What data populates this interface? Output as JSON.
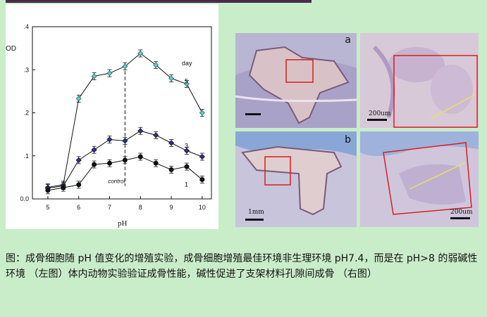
{
  "caption": "图：成骨细胞随 pH 值变化的增殖实验，成骨细胞增殖最佳环境非生理环境 pH7.4，而是在 pH>8 的弱碱性环境 （左图）体内动物实验验证成骨性能，碱性促进了支架材料孔隙间成骨 （右图）",
  "colors": {
    "background": "#c9ecc9",
    "day5": "#5fc9c9",
    "day3": "#2a2fa8",
    "day1": "#111111"
  },
  "chart_data": {
    "type": "line",
    "x": [
      5,
      5.5,
      6,
      6.5,
      7,
      7.5,
      8,
      8.5,
      9,
      9.5,
      10
    ],
    "xlabel": "pH",
    "ylabel": "OD",
    "xlim": [
      4.5,
      10.3
    ],
    "ylim": [
      0,
      0.4
    ],
    "xticks": [
      "5",
      "6",
      "7",
      "8",
      "9",
      "10"
    ],
    "yticks": [
      "0.0",
      ".1",
      ".2",
      ".3",
      ".4"
    ],
    "legend_title": "day",
    "annotation": "control",
    "control_x": 7.5,
    "series": [
      {
        "name": "5",
        "values": [
          0.027,
          0.033,
          0.233,
          0.285,
          0.292,
          0.308,
          0.338,
          0.311,
          0.28,
          0.267,
          0.2
        ]
      },
      {
        "name": "3",
        "values": [
          0.025,
          0.03,
          0.09,
          0.114,
          0.138,
          0.135,
          0.158,
          0.148,
          0.13,
          0.112,
          0.098
        ]
      },
      {
        "name": "1",
        "values": [
          0.02,
          0.026,
          0.033,
          0.08,
          0.083,
          0.09,
          0.098,
          0.083,
          0.068,
          0.075,
          0.045
        ]
      }
    ],
    "grid": false
  },
  "photos": [
    {
      "label": "a",
      "scale": ""
    },
    {
      "label": "",
      "scale": "200um"
    },
    {
      "label": "b",
      "scale": "1mm"
    },
    {
      "label": "",
      "scale": "200um"
    }
  ]
}
